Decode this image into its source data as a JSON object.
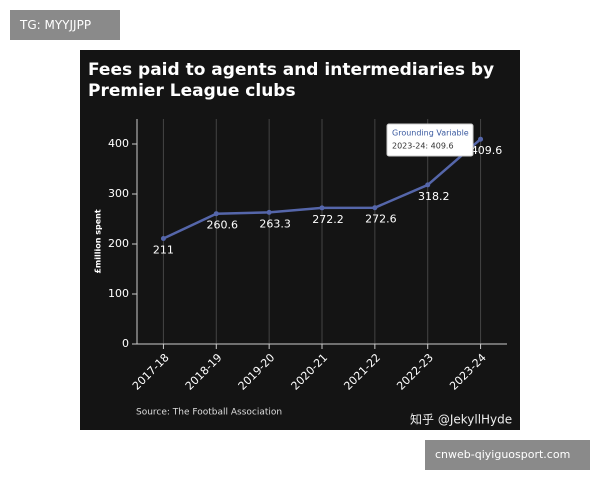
{
  "chart_data": {
    "type": "line",
    "title": "Fees paid to agents and intermediaries by Premier League clubs",
    "y_label": "£million spent",
    "source": "Source: The Football Association",
    "categories": [
      "2017-18",
      "2018-19",
      "2019-20",
      "2020-21",
      "2021-22",
      "2022-23",
      "2023-24"
    ],
    "series": [
      {
        "name": "Grounding Variable",
        "color": "#5566aa",
        "values": [
          211,
          260.6,
          263.3,
          272.2,
          272.6,
          318.2,
          409.6
        ]
      }
    ],
    "tooltip": "2023-24: 409.6",
    "ylim": [
      0,
      450
    ],
    "yticks": [
      0,
      100,
      200,
      300,
      400
    ],
    "grid": true
  },
  "overlay": {
    "tag": "TG: MYYJJPP",
    "site": "cnweb-qiyiguosport.com",
    "watermark": "知乎 @JekyllHyde"
  }
}
